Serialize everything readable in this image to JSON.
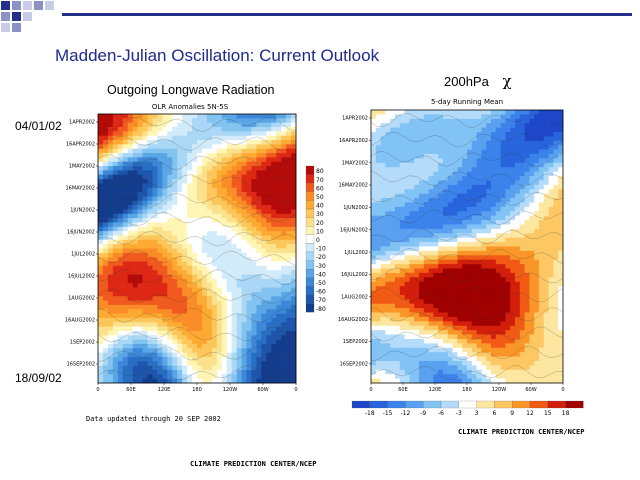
{
  "slide": {
    "title": "Madden-Julian Oscillation: Current Outlook",
    "footer_credit": "CLIMATE PREDICTION CENTER/NCEP"
  },
  "theme": {
    "header_color": "#25308a",
    "square_colors": [
      "#25308a",
      "#8a92c8",
      "#c9cce6"
    ]
  },
  "chart_data": [
    {
      "type": "heatmap",
      "caption": "Outgoing Longwave Radiation",
      "title": "OLR Anomalies 5N-5S",
      "start_label": "04/01/02",
      "end_label": "18/09/02",
      "y_ticks": [
        "1APR2002",
        "16APR2002",
        "1MAY2002",
        "16MAY2002",
        "1JUN2002",
        "16JUN2002",
        "1JUL2002",
        "16JUL2002",
        "1AUG2002",
        "16AUG2002",
        "1SEP2002",
        "16SEP2002"
      ],
      "x_ticks": [
        "0",
        "60E",
        "120E",
        "180",
        "120W",
        "60W",
        "0"
      ],
      "colorbar": {
        "levels": [
          80,
          70,
          60,
          50,
          40,
          30,
          20,
          10,
          0,
          -10,
          -20,
          -30,
          -40,
          -50,
          -60,
          -70,
          -80
        ],
        "colors": [
          "#b40a0a",
          "#dc2814",
          "#f05a1e",
          "#fa8c28",
          "#fdaa32",
          "#fdc65a",
          "#fbe18c",
          "#fff5b4",
          "#ffffff",
          "#d2ebfa",
          "#aad7f5",
          "#82c3f0",
          "#5aa5e6",
          "#3c87d7",
          "#286ec3",
          "#1e55aa",
          "#143c8c"
        ]
      },
      "note": "Data updated through 20 SEP 2002"
    },
    {
      "type": "heatmap",
      "caption": "200hPa",
      "caption_symbol": "χ",
      "title": "5-day Running Mean",
      "y_ticks": [
        "1APR2002",
        "16APR2002",
        "1MAY2002",
        "16MAY2002",
        "1JUN2002",
        "16JUN2002",
        "1JUL2002",
        "16JUL2002",
        "1AUG2002",
        "16AUG2002",
        "1SEP2002",
        "16SEP2002"
      ],
      "x_ticks": [
        "0",
        "60E",
        "120E",
        "180",
        "120W",
        "60W",
        "0"
      ],
      "colorbar": {
        "levels": [
          -18,
          -15,
          -12,
          -9,
          -6,
          -3,
          3,
          6,
          9,
          12,
          15,
          18
        ],
        "colors": [
          "#1e46c8",
          "#2864dc",
          "#3c82eb",
          "#5aa0f0",
          "#82c3f5",
          "#b4dcfa",
          "#ffffff",
          "#fde6a0",
          "#fdc864",
          "#fa9628",
          "#f05a14",
          "#d21e0a",
          "#a00000"
        ]
      },
      "credit": "CLIMATE PREDICTION CENTER/NCEP"
    }
  ]
}
